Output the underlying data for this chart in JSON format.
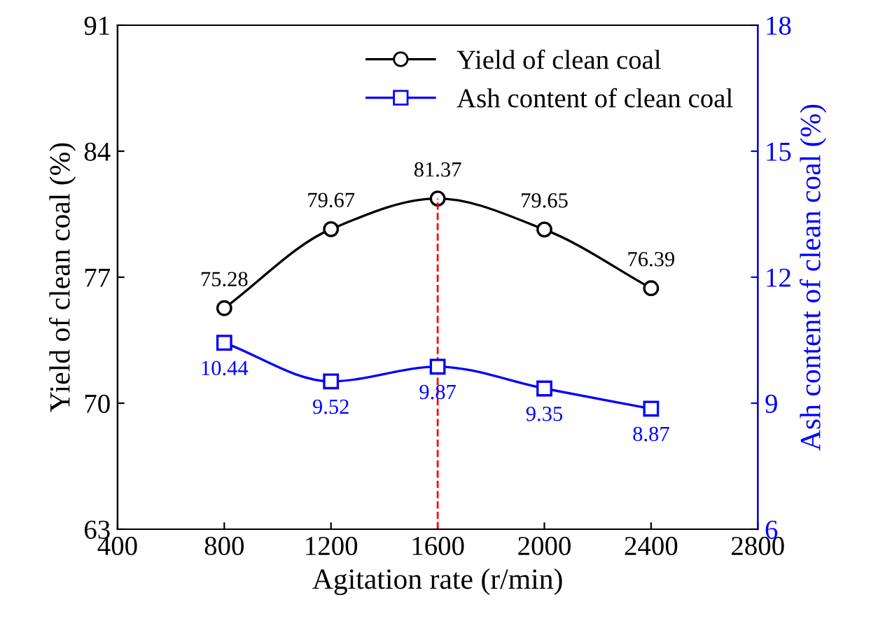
{
  "chart_data": {
    "type": "line",
    "xlabel": "Agitation rate (r/min)",
    "ylabel": "Yield of clean coal (%)",
    "y2label": "Ash content of clean coal (%)",
    "x": [
      800,
      1200,
      1600,
      2000,
      2400
    ],
    "series": [
      {
        "name": "Yield of clean coal",
        "color": "#000000",
        "marker": "circle",
        "values": [
          75.28,
          79.67,
          81.37,
          79.65,
          76.39
        ]
      },
      {
        "name": "Ash content of clean coal",
        "color": "#0000ff",
        "marker": "square",
        "axis": "y2",
        "values": [
          10.44,
          9.52,
          9.87,
          9.35,
          8.87
        ]
      }
    ],
    "xlim": [
      400,
      2800
    ],
    "xticks": [
      400,
      800,
      1200,
      1600,
      2000,
      2400,
      2800
    ],
    "ylim": [
      63,
      91
    ],
    "yticks": [
      63,
      70,
      77,
      84,
      91
    ],
    "y2lim": [
      6,
      18
    ],
    "y2ticks": [
      6,
      9,
      12,
      15,
      18
    ],
    "ref_lines": [
      {
        "axis": "x",
        "value": 1600,
        "color": "#ff0000",
        "line_style": "dashed"
      }
    ],
    "data_labels": true,
    "legend": "top right",
    "grid": false,
    "line_style": "solid"
  }
}
